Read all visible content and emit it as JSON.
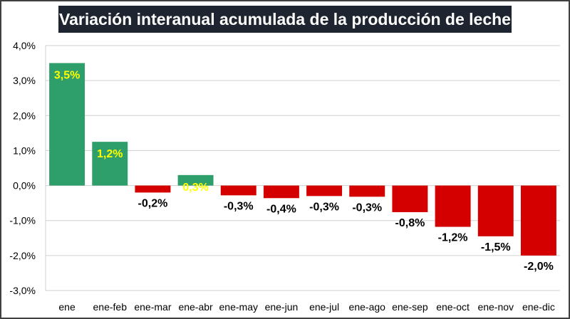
{
  "colors": {
    "positive": "#2e9e6a",
    "negative": "#d40000",
    "positive_label": "#ffff00",
    "negative_label": "#000000",
    "grid": "#d0d0d0",
    "title_bg": "#1f2530"
  },
  "chart_data": {
    "type": "bar",
    "title": "Variación interanual acumulada de la producción de leche",
    "xlabel": "",
    "ylabel": "",
    "ylim": [
      -3.0,
      4.0
    ],
    "y_ticks": [
      4.0,
      3.0,
      2.0,
      1.0,
      0.0,
      -1.0,
      -2.0,
      -3.0
    ],
    "y_tick_labels": [
      "4,0%",
      "3,0%",
      "2,0%",
      "1,0%",
      "0,0%",
      "-1,0%",
      "-2,0%",
      "-3,0%"
    ],
    "grid": true,
    "categories": [
      "ene",
      "ene-feb",
      "ene-mar",
      "ene-abr",
      "ene-may",
      "ene-jun",
      "ene-jul",
      "ene-ago",
      "ene-sep",
      "ene-oct",
      "ene-nov",
      "ene-dic"
    ],
    "values": [
      3.5,
      1.25,
      -0.2,
      0.3,
      -0.28,
      -0.36,
      -0.3,
      -0.32,
      -0.76,
      -1.18,
      -1.45,
      -2.0
    ],
    "data_labels": [
      "3,5%",
      "1,2%",
      "-0,2%",
      "0,3%",
      "-0,3%",
      "-0,4%",
      "-0,3%",
      "-0,3%",
      "-0,8%",
      "-1,2%",
      "-1,5%",
      "-2,0%"
    ]
  }
}
